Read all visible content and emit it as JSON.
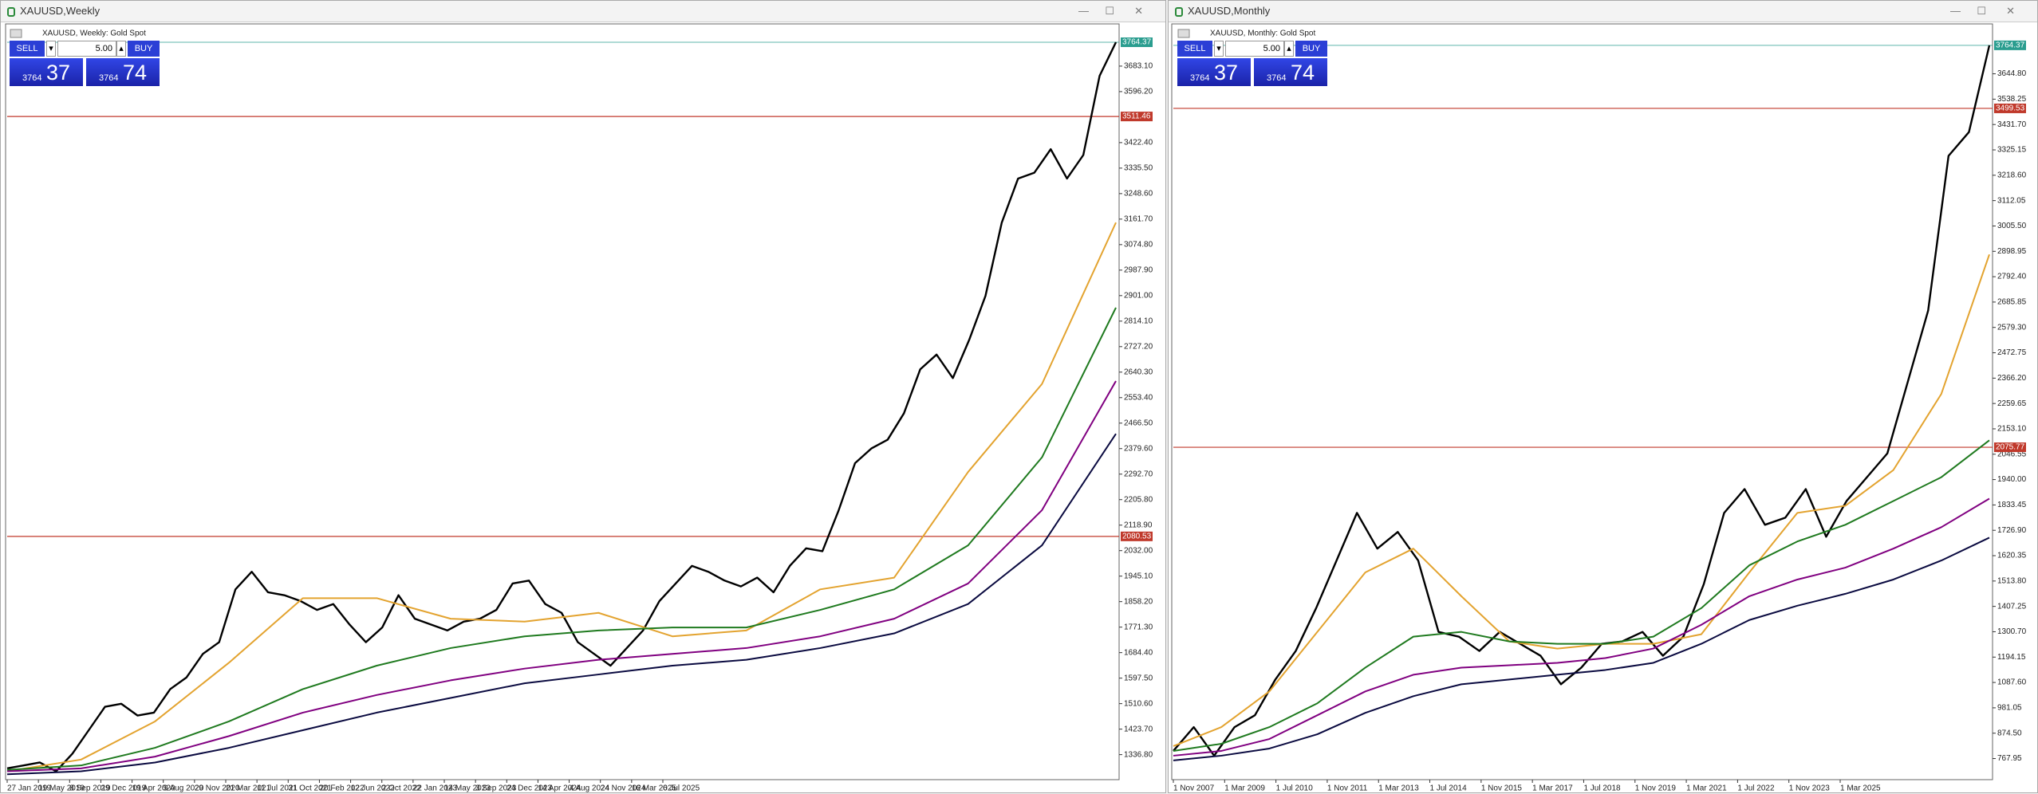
{
  "windows": [
    {
      "title": "XAUUSD,Weekly",
      "chart_label": "XAUUSD, Weekly:  Gold Spot",
      "trade": {
        "sell": "SELL",
        "lot": "5.00",
        "buy": "BUY",
        "sell_big": "3764",
        "sell_small": "37",
        "buy_big": "3764",
        "buy_small": "74"
      },
      "chart_data": {
        "type": "line",
        "xlabels": [
          "27 Jan 2019",
          "19 May 2019",
          "8 Sep 2019",
          "29 Dec 2019",
          "19 Apr 2020",
          "9 Aug 2020",
          "29 Nov 2020",
          "21 Mar 2021",
          "11 Jul 2021",
          "31 Oct 2021",
          "20 Feb 2022",
          "12 Jun 2022",
          "2 Oct 2022",
          "22 Jan 2023",
          "14 May 2023",
          "3 Sep 2023",
          "24 Dec 2023",
          "14 Apr 2024",
          "4 Aug 2024",
          "24 Nov 2024",
          "16 Mar 2025",
          "6 Jul 2025"
        ],
        "ylim": [
          1257,
          3816
        ],
        "yticks": [
          {
            "value": 3683.1,
            "label": "3683.10"
          },
          {
            "value": 3596.2,
            "label": "3596.20"
          },
          {
            "value": 3422.4,
            "label": "3422.40"
          },
          {
            "value": 3335.5,
            "label": "3335.50"
          },
          {
            "value": 3248.6,
            "label": "3248.60"
          },
          {
            "value": 3161.7,
            "label": "3161.70"
          },
          {
            "value": 3074.8,
            "label": "3074.80"
          },
          {
            "value": 2987.9,
            "label": "2987.90"
          },
          {
            "value": 2901,
            "label": "2901.00"
          },
          {
            "value": 2814.1,
            "label": "2814.10"
          },
          {
            "value": 2727.2,
            "label": "2727.20"
          },
          {
            "value": 2640.3,
            "label": "2640.30"
          },
          {
            "value": 2553.4,
            "label": "2553.40"
          },
          {
            "value": 2466.5,
            "label": "2466.50"
          },
          {
            "value": 2379.6,
            "label": "2379.60"
          },
          {
            "value": 2292.7,
            "label": "2292.70"
          },
          {
            "value": 2205.8,
            "label": "2205.80"
          },
          {
            "value": 2118.9,
            "label": "2118.90"
          },
          {
            "value": 2032,
            "label": "2032.00"
          },
          {
            "value": 1945.1,
            "label": "1945.10"
          },
          {
            "value": 1858.2,
            "label": "1858.20"
          },
          {
            "value": 1771.3,
            "label": "1771.30"
          },
          {
            "value": 1684.4,
            "label": "1684.40"
          },
          {
            "value": 1597.5,
            "label": "1597.50"
          },
          {
            "value": 1510.6,
            "label": "1510.60"
          },
          {
            "value": 1423.7,
            "label": "1423.70"
          },
          {
            "value": 1336.8,
            "label": "1336.80"
          }
        ],
        "price_lines": [
          {
            "value": 3764.37,
            "color": "#2a9d8f"
          },
          {
            "value": 3511.46,
            "color": "#c0392b"
          },
          {
            "value": 2080.53,
            "color": "#c0392b"
          }
        ],
        "series": [
          {
            "color": "#000000",
            "values": [
              1290,
              1300,
              1310,
              1280,
              1340,
              1420,
              1500,
              1510,
              1470,
              1480,
              1560,
              1600,
              1680,
              1720,
              1900,
              1960,
              1890,
              1880,
              1860,
              1830,
              1850,
              1780,
              1720,
              1770,
              1880,
              1800,
              1780,
              1760,
              1790,
              1800,
              1830,
              1920,
              1930,
              1850,
              1820,
              1720,
              1680,
              1640,
              1700,
              1760,
              1860,
              1920,
              1980,
              1960,
              1930,
              1910,
              1940,
              1890,
              1980,
              2040,
              2030,
              2170,
              2330,
              2380,
              2410,
              2500,
              2650,
              2700,
              2620,
              2750,
              2900,
              3150,
              3300,
              3320,
              3400,
              3300,
              3380,
              3650,
              3764.37
            ]
          },
          {
            "color": "#e3a32f",
            "values": [
              1280,
              1320,
              1450,
              1650,
              1870,
              1870,
              1800,
              1790,
              1820,
              1740,
              1760,
              1900,
              1940,
              2300,
              2600,
              3150
            ]
          },
          {
            "color": "#1f7a1f",
            "values": [
              1285,
              1300,
              1360,
              1450,
              1560,
              1640,
              1700,
              1740,
              1760,
              1770,
              1770,
              1830,
              1900,
              2050,
              2350,
              2860
            ]
          },
          {
            "color": "#800080",
            "values": [
              1280,
              1290,
              1330,
              1400,
              1480,
              1540,
              1590,
              1630,
              1660,
              1680,
              1700,
              1740,
              1800,
              1920,
              2170,
              2610
            ]
          },
          {
            "color": "#0a0a40",
            "values": [
              1270,
              1280,
              1310,
              1360,
              1420,
              1480,
              1530,
              1580,
              1610,
              1640,
              1660,
              1700,
              1750,
              1850,
              2050,
              2430
            ]
          }
        ]
      }
    },
    {
      "title": "XAUUSD,Monthly",
      "chart_label": "XAUUSD, Monthly:  Gold Spot",
      "trade": {
        "sell": "SELL",
        "lot": "5.00",
        "buy": "BUY",
        "sell_big": "3764",
        "sell_small": "37",
        "buy_big": "3764",
        "buy_small": "74"
      },
      "chart_data": {
        "type": "line",
        "xlabels": [
          "1 Nov 2007",
          "1 Mar 2009",
          "1 Jul 2010",
          "1 Nov 2011",
          "1 Mar 2013",
          "1 Jul 2014",
          "1 Nov 2015",
          "1 Mar 2017",
          "1 Jul 2018",
          "1 Nov 2019",
          "1 Mar 2021",
          "1 Jul 2022",
          "1 Nov 2023",
          "1 Mar 2025"
        ],
        "ylim": [
          686,
          3841
        ],
        "yticks": [
          {
            "value": 3644.8,
            "label": "3644.80"
          },
          3538.25,
          {
            "value": 3431.7,
            "label": "3431.70"
          },
          3325.15,
          {
            "value": 3218.6,
            "label": "3218.60"
          },
          3112.05,
          {
            "value": 3005.5,
            "label": "3005.50"
          },
          2898.95,
          {
            "value": 2792.4,
            "label": "2792.40"
          },
          2685.85,
          {
            "value": 2579.3,
            "label": "2579.30"
          },
          2472.75,
          {
            "value": 2366.2,
            "label": "2366.20"
          },
          2259.65,
          {
            "value": 2153.1,
            "label": "2153.10"
          },
          2046.55,
          {
            "value": 1940,
            "label": "1940.00"
          },
          1833.45,
          {
            "value": 1726.9,
            "label": "1726.90"
          },
          1620.35,
          {
            "value": 1513.8,
            "label": "1513.80"
          },
          1407.25,
          {
            "value": 1300.7,
            "label": "1300.70"
          },
          1194.15,
          {
            "value": 1087.6,
            "label": "1087.60"
          },
          981.05,
          {
            "value": 874.5,
            "label": "874.50"
          },
          767.95
        ],
        "price_lines": [
          {
            "value": 3764.37,
            "color": "#2a9d8f"
          },
          {
            "value": 3499.53,
            "color": "#c0392b"
          },
          {
            "value": 2075.77,
            "color": "#c0392b"
          }
        ],
        "series": [
          {
            "color": "#000000",
            "values": [
              800,
              900,
              780,
              900,
              950,
              1100,
              1220,
              1400,
              1600,
              1800,
              1650,
              1720,
              1600,
              1300,
              1280,
              1220,
              1300,
              1250,
              1200,
              1080,
              1150,
              1250,
              1260,
              1300,
              1200,
              1280,
              1500,
              1800,
              1900,
              1750,
              1780,
              1900,
              1700,
              1850,
              1950,
              2050,
              2350,
              2650,
              3300,
              3400,
              3764.37
            ]
          },
          {
            "color": "#e3a32f",
            "values": [
              820,
              900,
              1050,
              1300,
              1550,
              1650,
              1450,
              1260,
              1230,
              1250,
              1250,
              1290,
              1550,
              1800,
              1830,
              1980,
              2300,
              2886
            ]
          },
          {
            "color": "#1f7a1f",
            "values": [
              800,
              830,
              900,
              1000,
              1150,
              1280,
              1300,
              1260,
              1250,
              1250,
              1280,
              1400,
              1580,
              1680,
              1750,
              1850,
              1950,
              2105
            ]
          },
          {
            "color": "#800080",
            "values": [
              780,
              800,
              850,
              950,
              1050,
              1120,
              1150,
              1160,
              1170,
              1190,
              1230,
              1330,
              1450,
              1520,
              1570,
              1650,
              1740,
              1860
            ]
          },
          {
            "color": "#0a0a40",
            "values": [
              760,
              780,
              810,
              870,
              960,
              1030,
              1080,
              1100,
              1120,
              1140,
              1170,
              1250,
              1350,
              1410,
              1460,
              1520,
              1600,
              1696
            ]
          }
        ]
      }
    }
  ]
}
